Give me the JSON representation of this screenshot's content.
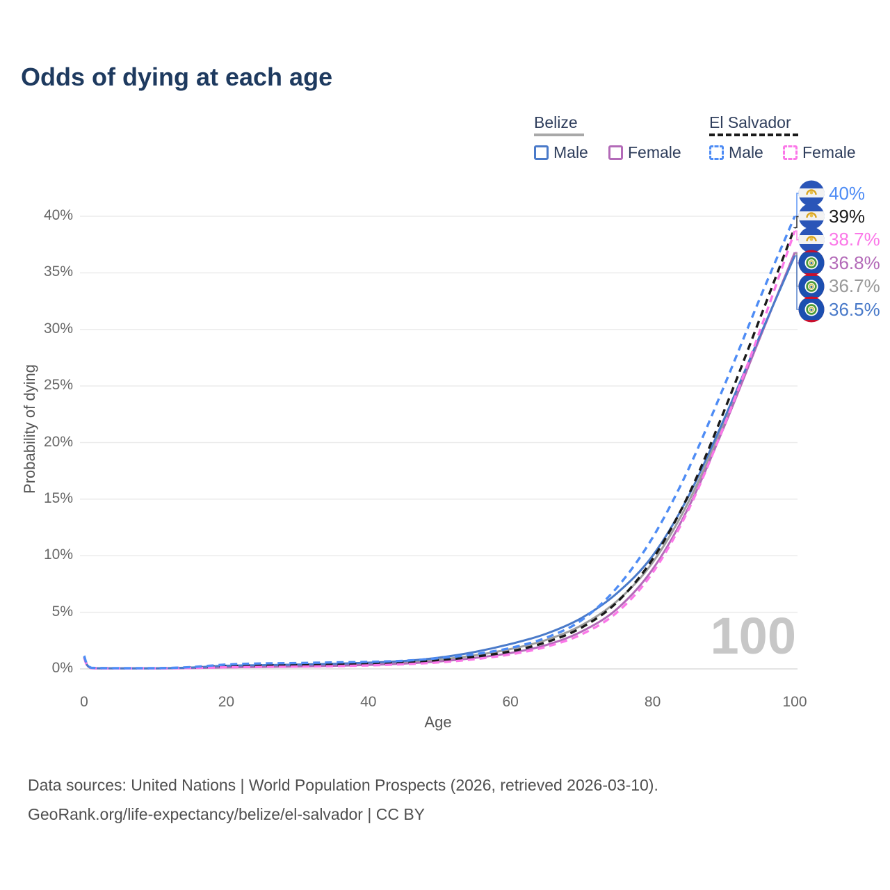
{
  "title": "Odds of dying at each age",
  "watermark_age": "100",
  "legend": {
    "groups": [
      {
        "name": "Belize",
        "line_style": "solid",
        "line_color": "#a8a8a8",
        "items": [
          {
            "label": "Male",
            "color": "#4a7ac9"
          },
          {
            "label": "Female",
            "color": "#b36ab8"
          }
        ]
      },
      {
        "name": "El Salvador",
        "line_style": "dashed",
        "line_color": "#1a1a1a",
        "items": [
          {
            "label": "Male",
            "color": "#4e8cf5"
          },
          {
            "label": "Female",
            "color": "#fb77e8"
          }
        ]
      }
    ]
  },
  "footer": {
    "line1": "Data sources: United Nations | World Population Prospects (2026, retrieved 2026-03-10).",
    "line2": "GeoRank.org/life-expectancy/belize/el-salvador | CC BY"
  },
  "chart_data": {
    "type": "line",
    "title": "Odds of dying at each age",
    "xlabel": "Age",
    "ylabel": "Probability of dying",
    "x_ticks": [
      "0",
      "20",
      "40",
      "60",
      "80",
      "100"
    ],
    "y_ticks": [
      "0%",
      "5%",
      "10%",
      "15%",
      "20%",
      "25%",
      "30%",
      "35%",
      "40%"
    ],
    "xlim": [
      0,
      100
    ],
    "ylim_pct": [
      0,
      40
    ],
    "grid": "horizontal",
    "legend_position": "top-right",
    "ages": [
      0,
      1,
      5,
      10,
      15,
      20,
      25,
      30,
      35,
      40,
      45,
      50,
      55,
      60,
      65,
      70,
      75,
      80,
      85,
      90,
      95,
      100
    ],
    "series": [
      {
        "name": "Belize Male",
        "country": "Belize",
        "sex": "Male",
        "style": "solid",
        "color": "#4a7ac9",
        "end_label": "36.5%",
        "values": [
          1.05,
          0.08,
          0.05,
          0.05,
          0.12,
          0.28,
          0.33,
          0.38,
          0.45,
          0.55,
          0.7,
          1.0,
          1.5,
          2.2,
          3.1,
          4.5,
          6.7,
          10.0,
          15.2,
          22.0,
          29.3,
          36.5
        ]
      },
      {
        "name": "Belize Female",
        "country": "Belize",
        "sex": "Female",
        "style": "solid",
        "color": "#b36ab8",
        "end_label": "36.8%",
        "values": [
          0.95,
          0.06,
          0.04,
          0.04,
          0.07,
          0.13,
          0.17,
          0.21,
          0.27,
          0.35,
          0.47,
          0.66,
          0.97,
          1.4,
          2.1,
          3.3,
          5.3,
          8.8,
          14.2,
          21.3,
          29.1,
          36.8
        ]
      },
      {
        "name": "Belize (both sexes)",
        "country": "Belize",
        "sex": "Both",
        "style": "solid",
        "color": "#9e9e9e",
        "end_label": "36.7%",
        "values": [
          1.0,
          0.07,
          0.045,
          0.045,
          0.1,
          0.21,
          0.26,
          0.3,
          0.36,
          0.45,
          0.58,
          0.82,
          1.2,
          1.75,
          2.55,
          3.85,
          6.0,
          9.4,
          14.7,
          21.6,
          29.2,
          36.7
        ]
      },
      {
        "name": "El Salvador (both sexes)",
        "country": "El Salvador",
        "sex": "Both",
        "style": "dashed",
        "color": "#1a1a1a",
        "end_label": "39%",
        "values": [
          1.05,
          0.08,
          0.05,
          0.05,
          0.11,
          0.24,
          0.3,
          0.34,
          0.38,
          0.45,
          0.56,
          0.76,
          1.08,
          1.55,
          2.35,
          3.65,
          5.9,
          9.7,
          15.3,
          22.7,
          30.8,
          39.0
        ]
      },
      {
        "name": "El Salvador Female",
        "country": "El Salvador",
        "sex": "Female",
        "style": "dashed",
        "color": "#fb77e8",
        "end_label": "38.7%",
        "values": [
          1.0,
          0.07,
          0.04,
          0.04,
          0.08,
          0.14,
          0.17,
          0.2,
          0.24,
          0.31,
          0.41,
          0.58,
          0.86,
          1.28,
          1.95,
          3.05,
          5.0,
          8.5,
          14.0,
          21.4,
          29.7,
          38.7
        ]
      },
      {
        "name": "El Salvador Male",
        "country": "El Salvador",
        "sex": "Male",
        "style": "dashed",
        "color": "#4e8cf5",
        "end_label": "40%",
        "values": [
          1.15,
          0.1,
          0.06,
          0.06,
          0.16,
          0.38,
          0.48,
          0.52,
          0.57,
          0.62,
          0.72,
          0.95,
          1.3,
          1.85,
          2.75,
          4.3,
          7.2,
          11.6,
          17.6,
          24.9,
          32.6,
          40.0
        ]
      }
    ],
    "end_labels": [
      {
        "label": "40%",
        "value": 40,
        "color": "#4e8cf5",
        "flag": "el-salvador"
      },
      {
        "label": "39%",
        "value": 39,
        "color": "#1a1a1a",
        "flag": "el-salvador"
      },
      {
        "label": "38.7%",
        "value": 38.7,
        "color": "#fb77e8",
        "flag": "el-salvador"
      },
      {
        "label": "36.8%",
        "value": 36.8,
        "color": "#b36ab8",
        "flag": "belize"
      },
      {
        "label": "36.7%",
        "value": 36.7,
        "color": "#999999",
        "flag": "belize"
      },
      {
        "label": "36.5%",
        "value": 36.5,
        "color": "#4a7ac9",
        "flag": "belize"
      }
    ]
  }
}
